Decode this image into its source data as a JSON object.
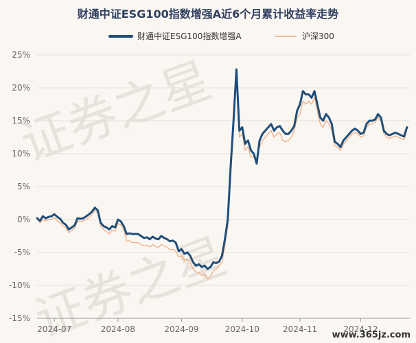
{
  "chart_data": {
    "type": "line",
    "title": "财通中证ESG100指数增强A近6个月累计收益率走势",
    "ylim": [
      -15,
      25
    ],
    "yticks": [
      -15,
      -10,
      -5,
      0,
      5,
      10,
      15,
      20,
      25
    ],
    "ytick_labels": [
      "-15%",
      "-10%",
      "-5%",
      "0%",
      "5%",
      "10%",
      "15%",
      "20%",
      "25%"
    ],
    "xlim": [
      0,
      129
    ],
    "xticks": [
      {
        "label": "2024-07",
        "x": 6
      },
      {
        "label": "2024-08",
        "x": 28
      },
      {
        "label": "2024-09",
        "x": 50
      },
      {
        "label": "2024-10",
        "x": 71
      },
      {
        "label": "2024-11",
        "x": 91
      },
      {
        "label": "2024-12",
        "x": 112
      }
    ],
    "grid": true,
    "legend_position": "top-center",
    "series": [
      {
        "name": "财通中证ESG100指数增强A",
        "color": "#1f4e7a",
        "values": [
          0.2,
          -0.2,
          0.5,
          0.2,
          0.4,
          0.5,
          0.8,
          0.4,
          0.1,
          -0.5,
          -0.8,
          -1.5,
          -1.2,
          -0.9,
          0.2,
          0.1,
          0.2,
          0.5,
          0.8,
          1.2,
          1.8,
          1.4,
          -0.5,
          -1.0,
          -1.2,
          -1.5,
          -1.0,
          -1.2,
          0.0,
          -0.3,
          -1.0,
          -2.2,
          -2.1,
          -2.2,
          -2.2,
          -2.2,
          -2.5,
          -2.8,
          -2.7,
          -3.0,
          -2.6,
          -2.9,
          -3.0,
          -2.5,
          -2.8,
          -3.0,
          -3.3,
          -3.2,
          -3.5,
          -4.8,
          -4.5,
          -5.2,
          -5.0,
          -5.5,
          -6.5,
          -7.0,
          -6.8,
          -7.2,
          -7.0,
          -7.5,
          -7.2,
          -6.5,
          -6.6,
          -6.4,
          -5.5,
          -3.0,
          0.0,
          8.0,
          15.0,
          22.8,
          13.5,
          14.0,
          11.5,
          12.0,
          10.5,
          10.0,
          8.5,
          12.0,
          13.0,
          13.5,
          14.0,
          14.5,
          13.5,
          14.0,
          14.2,
          13.5,
          13.0,
          13.0,
          13.5,
          14.2,
          16.5,
          17.5,
          19.5,
          19.0,
          19.0,
          18.5,
          19.5,
          17.5,
          15.5,
          15.0,
          16.0,
          15.5,
          14.5,
          11.8,
          11.5,
          11.0,
          12.0,
          12.5,
          13.0,
          13.5,
          13.8,
          13.5,
          13.0,
          13.2,
          14.5,
          15.0,
          15.0,
          15.2,
          16.0,
          15.5,
          13.5,
          13.0,
          12.8,
          13.0,
          13.2,
          13.0,
          12.8,
          12.6,
          14.0
        ]
      },
      {
        "name": "沪深300",
        "color": "#f0a97c",
        "values": [
          0.2,
          -0.5,
          0.0,
          -0.2,
          0.0,
          0.0,
          0.3,
          -0.2,
          -0.5,
          -1.0,
          -1.2,
          -2.0,
          -1.6,
          -1.3,
          -0.3,
          -0.3,
          -0.2,
          0.0,
          0.3,
          0.8,
          1.4,
          1.0,
          -1.0,
          -1.5,
          -1.8,
          -2.2,
          -1.6,
          -1.8,
          -0.6,
          -0.8,
          -1.5,
          -3.3,
          -3.2,
          -3.5,
          -3.5,
          -3.5,
          -3.8,
          -4.0,
          -3.9,
          -4.2,
          -3.8,
          -4.1,
          -4.2,
          -3.8,
          -4.0,
          -4.2,
          -4.6,
          -4.5,
          -4.8,
          -5.7,
          -5.5,
          -6.2,
          -6.0,
          -6.5,
          -7.5,
          -8.0,
          -8.0,
          -8.5,
          -8.3,
          -9.0,
          -8.6,
          -7.8,
          -7.5,
          -7.0,
          -6.5,
          -4.0,
          -1.0,
          7.0,
          14.0,
          21.8,
          12.5,
          13.0,
          10.5,
          11.0,
          9.5,
          9.5,
          9.0,
          11.0,
          12.0,
          12.5,
          13.0,
          13.5,
          12.5,
          13.0,
          13.2,
          12.0,
          11.8,
          12.0,
          12.5,
          13.5,
          15.5,
          16.0,
          18.0,
          17.5,
          18.0,
          17.5,
          18.5,
          16.5,
          14.5,
          14.0,
          15.0,
          14.5,
          13.5,
          11.2,
          11.0,
          10.5,
          11.5,
          12.0,
          12.5,
          13.0,
          13.3,
          13.0,
          12.5,
          12.7,
          14.0,
          14.5,
          14.5,
          14.8,
          15.5,
          15.0,
          13.0,
          12.5,
          12.3,
          12.5,
          12.7,
          12.5,
          12.3,
          12.1,
          13.5
        ]
      }
    ]
  },
  "watermark": {
    "lines": [
      "证券之星",
      "证券之星"
    ],
    "logo_text": "www.365jz.com"
  },
  "colors": {
    "background": "#faf6f2",
    "grid": "#e2ddd8",
    "axis": "#999999"
  }
}
